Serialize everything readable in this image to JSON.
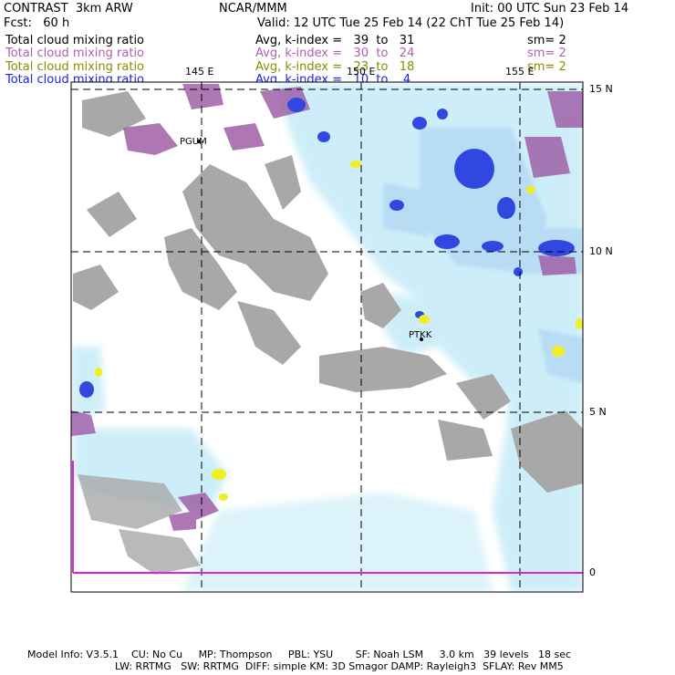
{
  "header": {
    "model": "CONTRAST  3km ARW",
    "org": "NCAR/MMM",
    "init": "Init: 00 UTC Sun 23 Feb 14",
    "fcst": "Fcst:   60 h",
    "valid": "Valid: 12 UTC Tue 25 Feb 14 (22 ChT Tue 25 Feb 14)"
  },
  "fields": [
    {
      "name": "Total cloud mixing ratio",
      "stat": "Avg, k-index =   39  to   31",
      "sm": "sm= 2",
      "color": "#000000"
    },
    {
      "name": "Total cloud mixing ratio",
      "stat": "Avg, k-index =   30  to   24",
      "sm": "sm= 2",
      "color": "#b060b0"
    },
    {
      "name": "Total cloud mixing ratio",
      "stat": "Avg, k-index =   23  to   18",
      "sm": "sm= 2",
      "color": "#8c8c00"
    },
    {
      "name": "Total cloud mixing ratio",
      "stat": "Avg, k-index =   10  to    4",
      "sm": "",
      "color": "#2020e0"
    }
  ],
  "map": {
    "lon_labels": [
      "145 E",
      "150 E",
      "155 E"
    ],
    "lat_labels": [
      "15 N",
      "10 N",
      "5 N",
      "0"
    ],
    "stations": [
      "PGUM",
      "PTKK"
    ]
  },
  "footer": {
    "line1": "Model Info: V3.5.1    CU: No Cu     MP: Thompson     PBL: YSU       SF: Noah LSM     3.0 km   39 levels   18 sec",
    "line2": "LW: RRTMG   SW: RRTMG  DIFF: simple KM: 3D Smagor DAMP: Rayleigh3  SFLAY: Rev MM5"
  }
}
